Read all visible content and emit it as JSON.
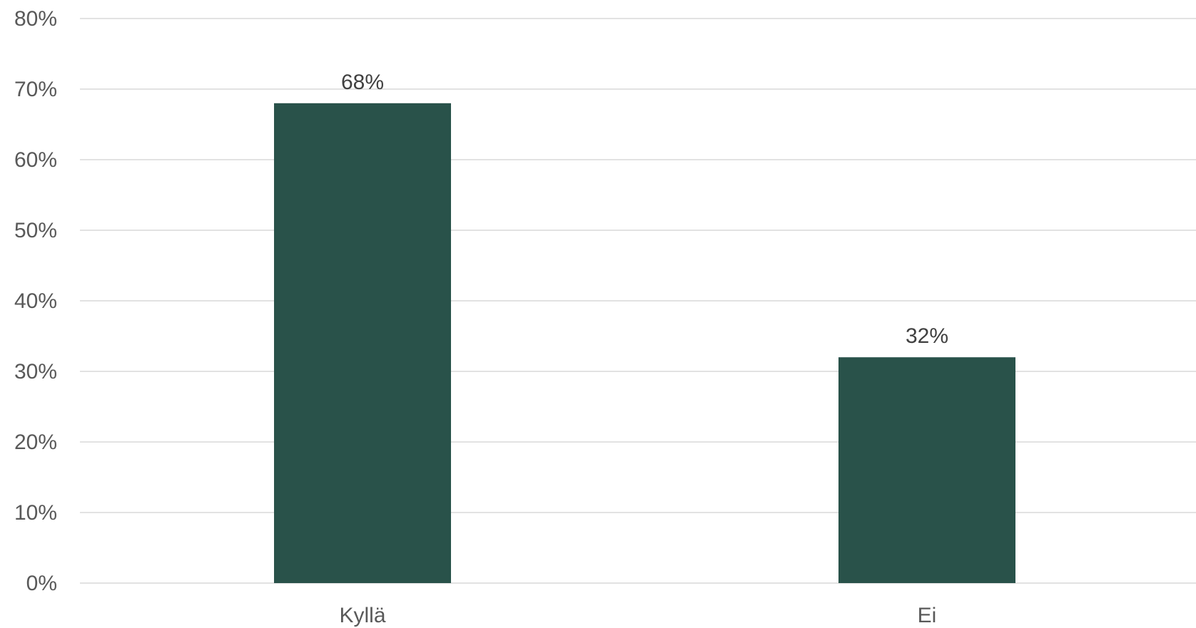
{
  "chart_data": {
    "type": "bar",
    "categories": [
      "Kyllä",
      "Ei"
    ],
    "values": [
      68,
      32
    ],
    "data_labels": [
      "68%",
      "32%"
    ],
    "title": "",
    "xlabel": "",
    "ylabel": "",
    "ylim": [
      0,
      80
    ],
    "y_ticks": [
      0,
      10,
      20,
      30,
      40,
      50,
      60,
      70,
      80
    ],
    "y_tick_labels": [
      "0%",
      "10%",
      "20%",
      "30%",
      "40%",
      "50%",
      "60%",
      "70%",
      "80%"
    ],
    "grid": true,
    "legend": "none",
    "bar_color": "#29524a",
    "grid_color": "#d9d9d9"
  }
}
